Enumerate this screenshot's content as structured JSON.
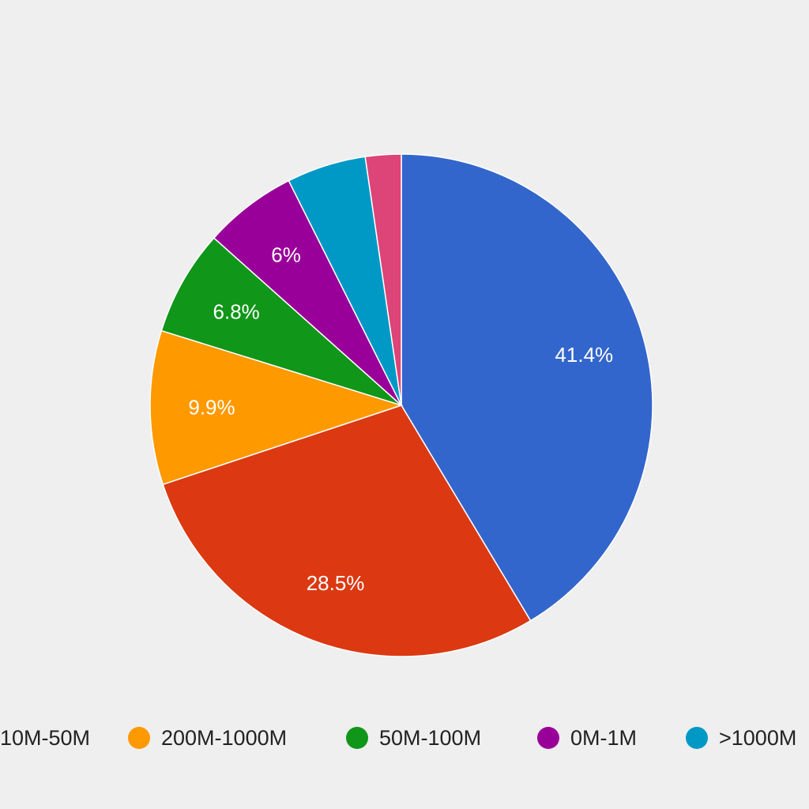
{
  "chart_data": {
    "type": "pie",
    "slices": [
      {
        "label": "",
        "value": 41.4,
        "display": "41.4%",
        "color": "#3366cc"
      },
      {
        "label": "10M-50M",
        "value": 28.5,
        "display": "28.5%",
        "color": "#dc3912"
      },
      {
        "label": "200M-1000M",
        "value": 9.9,
        "display": "9.9%",
        "color": "#ff9900"
      },
      {
        "label": "50M-100M",
        "value": 6.8,
        "display": "6.8%",
        "color": "#109618"
      },
      {
        "label": "0M-1M",
        "value": 6.0,
        "display": "6%",
        "color": "#990099"
      },
      {
        "label": ">1000M",
        "value": 5.1,
        "display": "",
        "color": "#0099c6"
      },
      {
        "label": "",
        "value": 2.3,
        "display": "",
        "color": "#dd4477"
      }
    ],
    "legend": [
      {
        "label": "10M-50M",
        "color": "#dc3912"
      },
      {
        "label": "200M-1000M",
        "color": "#ff9900"
      },
      {
        "label": "50M-100M",
        "color": "#109618"
      },
      {
        "label": "0M-1M",
        "color": "#990099"
      },
      {
        "label": ">1000M",
        "color": "#0099c6"
      }
    ],
    "legend_position": "bottom",
    "start_angle": "12 o'clock",
    "direction": "clockwise"
  }
}
